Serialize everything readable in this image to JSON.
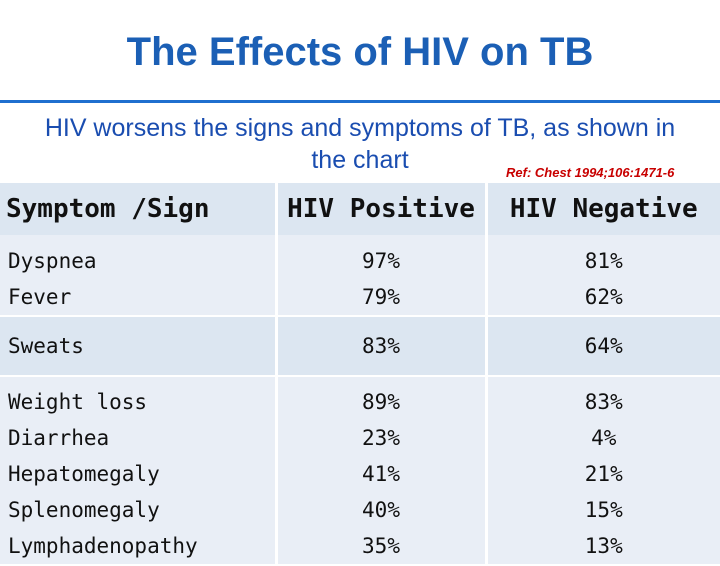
{
  "slide": {
    "title": "The Effects of HIV on TB",
    "subtitle_line1": "HIV worsens the signs and symptoms of TB, as shown in",
    "subtitle_line2": "the chart",
    "reference": "Ref: Chest 1994;106:1471-6"
  },
  "table": {
    "headers": [
      "Symptom /Sign",
      "HIV Positive",
      "HIV Negative"
    ],
    "groups": [
      {
        "rows": [
          {
            "symptom": "Dyspnea",
            "hiv_positive": "97%",
            "hiv_negative": "81%"
          },
          {
            "symptom": "Fever",
            "hiv_positive": "79%",
            "hiv_negative": "62%"
          }
        ]
      },
      {
        "rows": [
          {
            "symptom": "Sweats",
            "hiv_positive": "83%",
            "hiv_negative": "64%"
          }
        ]
      },
      {
        "rows": [
          {
            "symptom": "Weight loss",
            "hiv_positive": "89%",
            "hiv_negative": "83%"
          },
          {
            "symptom": "Diarrhea",
            "hiv_positive": "23%",
            "hiv_negative": "4%"
          },
          {
            "symptom": "Hepatomegaly",
            "hiv_positive": "41%",
            "hiv_negative": "21%"
          },
          {
            "symptom": "Splenomegaly",
            "hiv_positive": "40%",
            "hiv_negative": "15%"
          },
          {
            "symptom": "Lymphadenopathy",
            "hiv_positive": "35%",
            "hiv_negative": "13%"
          }
        ]
      }
    ]
  }
}
